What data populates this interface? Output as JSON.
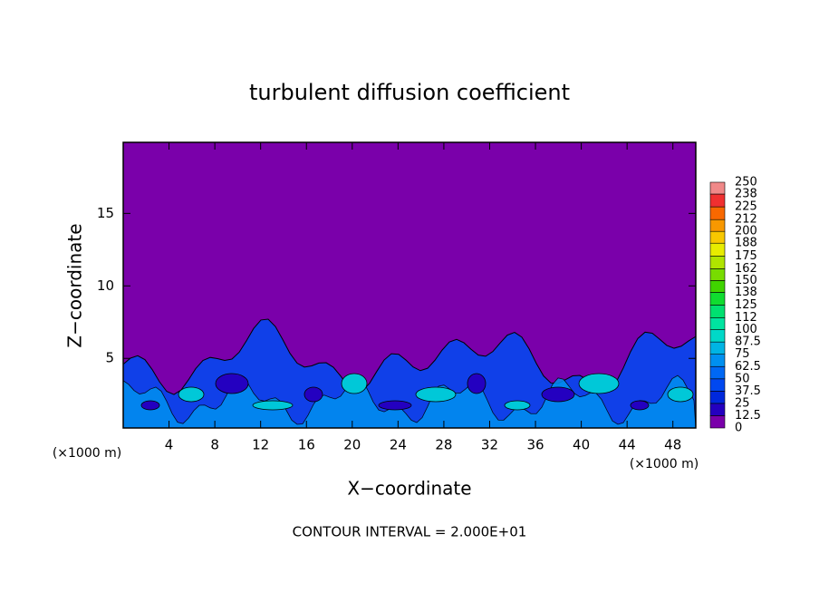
{
  "chart_data": {
    "type": "contour",
    "title": "turbulent diffusion coefficient",
    "xlabel": "X−coordinate",
    "ylabel": "Z−coordinate",
    "x_unit_label": "(×1000 m)",
    "annotation": "CONTOUR INTERVAL = 2.000E+01",
    "xlim": [
      0,
      50
    ],
    "xticks": [
      4,
      8,
      12,
      16,
      20,
      24,
      28,
      32,
      36,
      40,
      44,
      48
    ],
    "ylim": [
      0.2,
      19.9
    ],
    "yticks": [
      5,
      10,
      15
    ],
    "field_color": "#7a00aa",
    "colorbar": {
      "levels": [
        0,
        12.5,
        25,
        37.5,
        50,
        62.5,
        75,
        87.5,
        100,
        112,
        125,
        138,
        150,
        162,
        175,
        188,
        200,
        212,
        225,
        238,
        250
      ],
      "colors": [
        "#7a00aa",
        "#2400c0",
        "#0028dc",
        "#0048f0",
        "#0068f4",
        "#0090f0",
        "#00b4e4",
        "#00d8c8",
        "#00e4a0",
        "#00e070",
        "#10dc30",
        "#40d400",
        "#78dc00",
        "#b0e400",
        "#e8ec00",
        "#f8c800",
        "#f89800",
        "#f86800",
        "#f03030",
        "#f08888"
      ]
    }
  }
}
